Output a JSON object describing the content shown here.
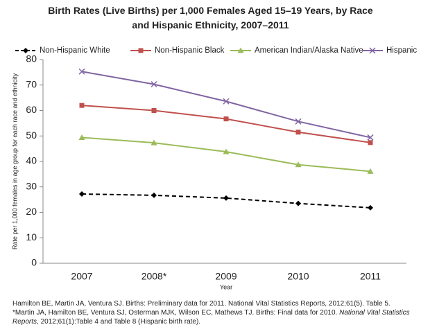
{
  "chart_data": {
    "type": "line",
    "title": "Birth Rates (Live Births) per 1,000 Females Aged 15–19 Years, by Race and Hispanic Ethnicity, 2007–2011",
    "x_label": "Year",
    "y_label": "Rate per 1,000 females in age group for each race and ethnicity",
    "categories": [
      "2007",
      "2008*",
      "2009",
      "2010",
      "2011"
    ],
    "series": [
      {
        "name": "Non-Hispanic White",
        "color": "#000000",
        "marker": "diamond",
        "dashed": true,
        "values": [
          27.2,
          26.7,
          25.6,
          23.5,
          21.8
        ]
      },
      {
        "name": "Non-Hispanic Black",
        "color": "#c0504d",
        "marker": "square",
        "dashed": false,
        "values": [
          62.0,
          60.0,
          56.7,
          51.5,
          47.4
        ]
      },
      {
        "name": "American Indian/Alaska Native",
        "color": "#9bbb59",
        "marker": "triangle",
        "dashed": false,
        "values": [
          49.4,
          47.3,
          43.8,
          38.7,
          36.1
        ]
      },
      {
        "name": "Hispanic",
        "color": "#8064a2",
        "marker": "x",
        "dashed": false,
        "values": [
          75.3,
          70.3,
          63.6,
          55.7,
          49.4
        ]
      }
    ],
    "ylim": [
      0,
      80
    ],
    "yticks": [
      0,
      10,
      20,
      30,
      40,
      50,
      60,
      70,
      80
    ],
    "grid": false,
    "legend": "top"
  },
  "notes": [
    "Hamilton BE, Martin JA, Ventura SJ. Births: Preliminary data for 2011. National Vital Statistics Reports, 2012;61(5). Table 5.",
    [
      "*Martin JA, Hamilton BE, Ventura SJ, Osterman MJK, Wilson EC, Mathews TJ. Births: Final data for 2010. ",
      "National Vital Statistics Reports",
      ", 2012;61(1):Table 4 and Table 8 (Hispanic birth rate)."
    ]
  ]
}
